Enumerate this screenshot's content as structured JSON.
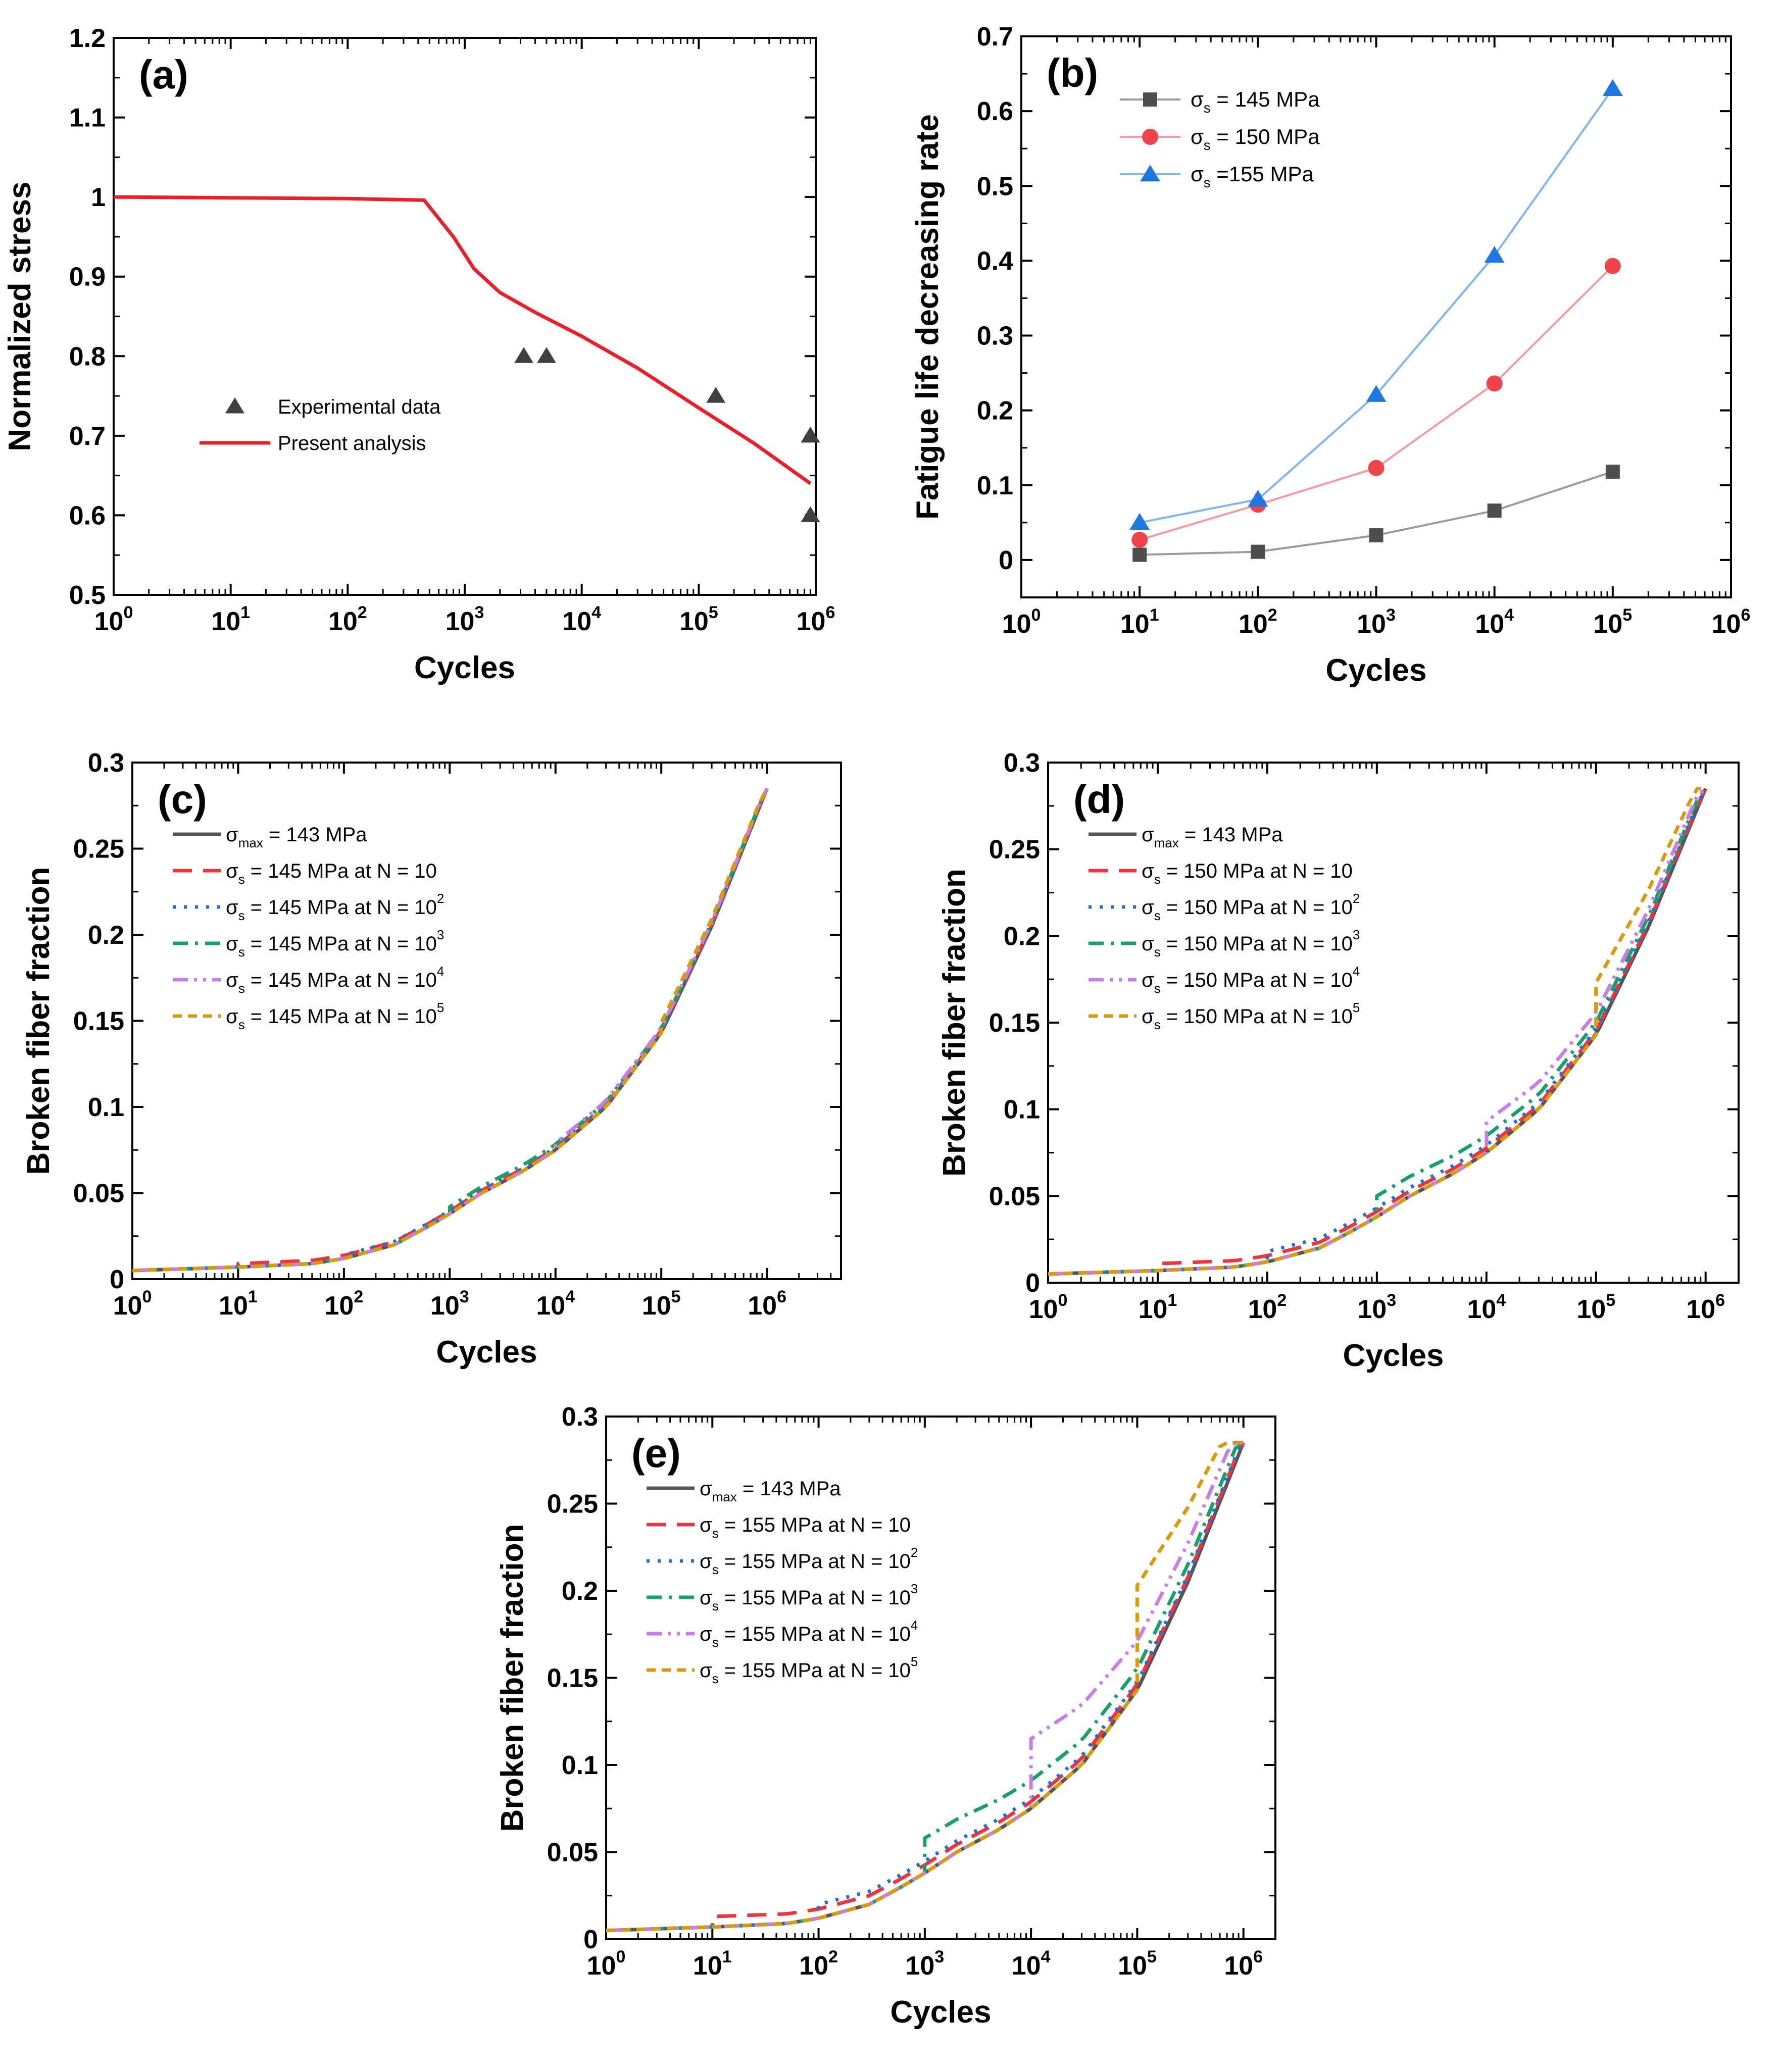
{
  "chart_data": [
    {
      "id": "a",
      "type": "scatter",
      "panel_label": "(a)",
      "xlabel": "Cycles",
      "ylabel": "Normalized stress",
      "xscale": "log",
      "xlim": [
        1,
        1000000
      ],
      "ylim": [
        0.5,
        1.2
      ],
      "xticks": [
        {
          "exp": "0"
        },
        {
          "exp": "1"
        },
        {
          "exp": "2"
        },
        {
          "exp": "3"
        },
        {
          "exp": "4"
        },
        {
          "exp": "5"
        },
        {
          "exp": "6"
        }
      ],
      "yticks": [
        "0.5",
        "0.6",
        "0.7",
        "0.8",
        "0.9",
        "1",
        "1.1",
        "1.2"
      ],
      "legend_position": "center-left",
      "series": [
        {
          "name": "Experimental data",
          "kind": "markers",
          "marker": "triangle",
          "color": "#404040",
          "x": [
            3200,
            5000,
            140000,
            900000,
            900000
          ],
          "y": [
            0.8,
            0.8,
            0.75,
            0.7,
            0.6
          ]
        },
        {
          "name": "Present analysis",
          "kind": "line",
          "color": "#e8202a",
          "x": [
            1,
            10,
            100,
            450,
            800,
            1200,
            2000,
            4000,
            10000,
            30000,
            100000,
            300000,
            900000
          ],
          "y": [
            1.0,
            0.999,
            0.998,
            0.996,
            0.95,
            0.91,
            0.88,
            0.855,
            0.825,
            0.785,
            0.735,
            0.69,
            0.64
          ]
        }
      ]
    },
    {
      "id": "b",
      "type": "line",
      "panel_label": "(b)",
      "xlabel": "Cycles",
      "ylabel": "Fatigue life decreasing rate",
      "xscale": "log",
      "xlim": [
        1,
        1000000
      ],
      "ylim": [
        -0.05,
        0.7
      ],
      "xticks": [
        {
          "exp": "0"
        },
        {
          "exp": "1"
        },
        {
          "exp": "2"
        },
        {
          "exp": "3"
        },
        {
          "exp": "4"
        },
        {
          "exp": "5"
        },
        {
          "exp": "6"
        }
      ],
      "yticks": [
        "0",
        "0.1",
        "0.2",
        "0.3",
        "0.4",
        "0.5",
        "0.6",
        "0.7"
      ],
      "legend_position": "top-left",
      "x": [
        10,
        100,
        1000,
        10000,
        100000
      ],
      "series": [
        {
          "label": "σ",
          "sub": "s",
          "suffix": " = 145 MPa",
          "marker": "square",
          "color": "#4d4d4d",
          "line_color": "#9a9a9a",
          "values": [
            0.007,
            0.011,
            0.033,
            0.066,
            0.118
          ]
        },
        {
          "label": "σ",
          "sub": "s",
          "suffix": " = 150 MPa",
          "marker": "circle",
          "color": "#f0444c",
          "line_color": "#f59aa0",
          "values": [
            0.027,
            0.074,
            0.123,
            0.236,
            0.393
          ]
        },
        {
          "label": "σ",
          "sub": "s",
          "suffix": " =155 MPa",
          "marker": "triangle",
          "color": "#1f77e0",
          "line_color": "#7fb5ee",
          "values": [
            0.05,
            0.081,
            0.221,
            0.407,
            0.63
          ]
        }
      ]
    },
    {
      "id": "c",
      "type": "line",
      "panel_label": "(c)",
      "xlabel": "Cycles",
      "ylabel": "Broken fiber fraction",
      "xscale": "log",
      "xlim": [
        1,
        5000000
      ],
      "ylim": [
        0,
        0.3
      ],
      "xticks": [
        {
          "exp": "0"
        },
        {
          "exp": "1"
        },
        {
          "exp": "2"
        },
        {
          "exp": "3"
        },
        {
          "exp": "4"
        },
        {
          "exp": "5"
        },
        {
          "exp": "6"
        }
      ],
      "yticks": [
        "0",
        "0.05",
        "0.1",
        "0.15",
        "0.2",
        "0.25",
        "0.3"
      ],
      "legend_position": "top-left",
      "stress": "145",
      "offsets": [
        0.002,
        0.002,
        0.004,
        0.004,
        0.006
      ],
      "series": [
        {
          "label": "σ",
          "sub": "max",
          "suffix": " = 143 MPa",
          "color": "#555555",
          "dash": "solid"
        },
        {
          "label": "σ",
          "sub": "s",
          "suffix": " = 145 MPa at N = 10",
          "color": "#f0343c",
          "dash": "long",
          "switch": 10
        },
        {
          "label": "σ",
          "sub": "s",
          "suffix": " = 145 MPa at N = 10",
          "sup": "2",
          "color": "#1e6fd8",
          "dash": "dot",
          "switch": 100
        },
        {
          "label": "σ",
          "sub": "s",
          "suffix": " = 145 MPa at N = 10",
          "sup": "3",
          "color": "#17a06a",
          "dash": "dashdot",
          "switch": 1000
        },
        {
          "label": "σ",
          "sub": "s",
          "suffix": " = 145 MPa at N = 10",
          "sup": "4",
          "color": "#c77ee6",
          "dash": "dashdotdot",
          "switch": 10000
        },
        {
          "label": "σ",
          "sub": "s",
          "suffix": " = 145 MPa at N = 10",
          "sup": "5",
          "color": "#d99a10",
          "dash": "short",
          "switch": 100000
        }
      ]
    },
    {
      "id": "d",
      "type": "line",
      "panel_label": "(d)",
      "xlabel": "Cycles",
      "ylabel": "Broken fiber fraction",
      "xscale": "log",
      "xlim": [
        1,
        2000000
      ],
      "ylim": [
        0,
        0.3
      ],
      "xticks": [
        {
          "exp": "0"
        },
        {
          "exp": "1"
        },
        {
          "exp": "2"
        },
        {
          "exp": "3"
        },
        {
          "exp": "4"
        },
        {
          "exp": "5"
        },
        {
          "exp": "6"
        }
      ],
      "yticks": [
        "0",
        "0.05",
        "0.1",
        "0.15",
        "0.2",
        "0.25",
        "0.3"
      ],
      "legend_position": "top-left",
      "offsets": [
        0.004,
        0.006,
        0.012,
        0.018,
        0.03
      ],
      "series": [
        {
          "label": "σ",
          "sub": "max",
          "suffix": " = 143 MPa",
          "color": "#555555",
          "dash": "solid"
        },
        {
          "label": "σ",
          "sub": "s",
          "suffix": " = 150 MPa at N = 10",
          "color": "#f0343c",
          "dash": "long",
          "switch": 10
        },
        {
          "label": "σ",
          "sub": "s",
          "suffix": " = 150 MPa at N = 10",
          "sup": "2",
          "color": "#1e6fd8",
          "dash": "dot",
          "switch": 100
        },
        {
          "label": "σ",
          "sub": "s",
          "suffix": " = 150 MPa at N = 10",
          "sup": "3",
          "color": "#17a06a",
          "dash": "dashdot",
          "switch": 1000
        },
        {
          "label": "σ",
          "sub": "s",
          "suffix": " = 150 MPa at N = 10",
          "sup": "4",
          "color": "#c77ee6",
          "dash": "dashdotdot",
          "switch": 10000
        },
        {
          "label": "σ",
          "sub": "s",
          "suffix": " = 150 MPa at N = 10",
          "sup": "5",
          "color": "#d99a10",
          "dash": "short",
          "switch": 100000
        }
      ]
    },
    {
      "id": "e",
      "type": "line",
      "panel_label": "(e)",
      "xlabel": "Cycles",
      "ylabel": "Broken fiber fraction",
      "xscale": "log",
      "xlim": [
        1,
        2000000
      ],
      "ylim": [
        0,
        0.3
      ],
      "xticks": [
        {
          "exp": "0"
        },
        {
          "exp": "1"
        },
        {
          "exp": "2"
        },
        {
          "exp": "3"
        },
        {
          "exp": "4"
        },
        {
          "exp": "5"
        },
        {
          "exp": "6"
        }
      ],
      "yticks": [
        "0",
        "0.05",
        "0.1",
        "0.15",
        "0.2",
        "0.25",
        "0.3"
      ],
      "legend_position": "top-left",
      "offsets": [
        0.006,
        0.008,
        0.02,
        0.04,
        0.06
      ],
      "series": [
        {
          "label": "σ",
          "sub": "max",
          "suffix": " = 143 MPa",
          "color": "#555555",
          "dash": "solid"
        },
        {
          "label": "σ",
          "sub": "s",
          "suffix": " = 155 MPa at N = 10",
          "color": "#f0343c",
          "dash": "long",
          "switch": 10
        },
        {
          "label": "σ",
          "sub": "s",
          "suffix": " = 155 MPa at N = 10",
          "sup": "2",
          "color": "#1e6fd8",
          "dash": "dot",
          "switch": 100
        },
        {
          "label": "σ",
          "sub": "s",
          "suffix": " = 155 MPa at N = 10",
          "sup": "3",
          "color": "#17a06a",
          "dash": "dashdot",
          "switch": 1000
        },
        {
          "label": "σ",
          "sub": "s",
          "suffix": " = 155 MPa at N = 10",
          "sup": "4",
          "color": "#c77ee6",
          "dash": "dashdotdot",
          "switch": 10000
        },
        {
          "label": "σ",
          "sub": "s",
          "suffix": " = 155 MPa at N = 10",
          "sup": "5",
          "color": "#d99a10",
          "dash": "short",
          "switch": 100000
        }
      ]
    }
  ],
  "base_curve": {
    "x": [
      1,
      10,
      50,
      100,
      300,
      600,
      1000,
      2000,
      5000,
      10000,
      30000,
      100000,
      300000,
      1000000
    ],
    "y": [
      0.005,
      0.007,
      0.009,
      0.012,
      0.02,
      0.03,
      0.038,
      0.05,
      0.063,
      0.075,
      0.1,
      0.143,
      0.205,
      0.285
    ]
  }
}
